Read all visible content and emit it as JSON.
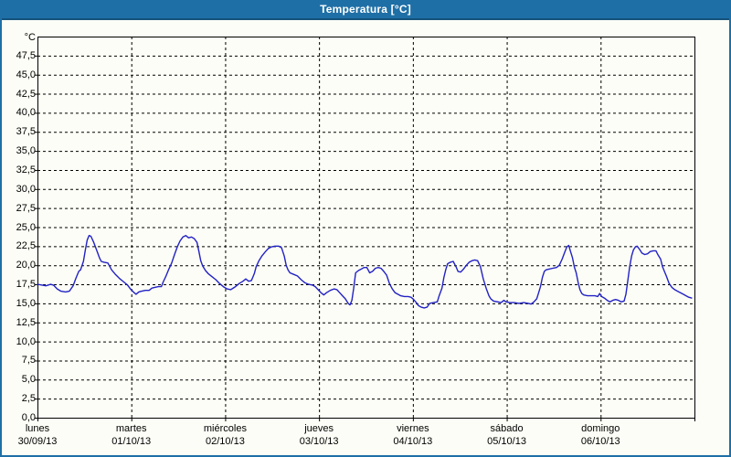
{
  "window": {
    "title": "Temperatura [°C]"
  },
  "colors": {
    "titlebar_bg": "#1e6fa6",
    "window_border": "#1e6fa6",
    "panel_bg": "#fcfdf6",
    "grid": "#000000",
    "axis": "#000000",
    "text": "#000000",
    "line": "#2222c4"
  },
  "chart_data": {
    "type": "line",
    "title": "Temperatura [°C]",
    "y_unit_label": "°C",
    "ylabel": "",
    "xlabel": "",
    "ylim": [
      0,
      50
    ],
    "y_tick_step": 2.5,
    "grid": "dashed",
    "legend": "none",
    "y_tick_values": [
      47.5,
      45.0,
      42.5,
      40.0,
      37.5,
      35.0,
      32.5,
      30.0,
      27.5,
      25.0,
      22.5,
      20.0,
      17.5,
      15.0,
      12.5,
      10.0,
      7.5,
      5.0,
      2.5,
      0.0
    ],
    "y_tick_labels": [
      "47,5",
      "45,0",
      "42,5",
      "40,0",
      "37,5",
      "35,0",
      "32,5",
      "30,0",
      "27,5",
      "25,0",
      "22,5",
      "20,0",
      "17,5",
      "15,0",
      "12,5",
      "10,0",
      "7,5",
      "5,0",
      "2,5",
      "0,0"
    ],
    "x_days": [
      {
        "name": "lunes",
        "date": "30/09/13"
      },
      {
        "name": "martes",
        "date": "01/10/13"
      },
      {
        "name": "miércoles",
        "date": "02/10/13"
      },
      {
        "name": "jueves",
        "date": "03/10/13"
      },
      {
        "name": "viernes",
        "date": "04/10/13"
      },
      {
        "name": "sábado",
        "date": "05/10/13"
      },
      {
        "name": "domingo",
        "date": "06/10/13"
      }
    ],
    "series": [
      {
        "name": "Temperatura",
        "color": "#2222c4",
        "points": [
          [
            0.0,
            17.5
          ],
          [
            0.05,
            17.4
          ],
          [
            0.09,
            17.3
          ],
          [
            0.14,
            17.5
          ],
          [
            0.17,
            17.4
          ],
          [
            0.21,
            16.9
          ],
          [
            0.25,
            16.6
          ],
          [
            0.3,
            16.5
          ],
          [
            0.34,
            16.6
          ],
          [
            0.38,
            17.3
          ],
          [
            0.41,
            18.3
          ],
          [
            0.44,
            19.2
          ],
          [
            0.46,
            19.4
          ],
          [
            0.49,
            20.5
          ],
          [
            0.51,
            22.0
          ],
          [
            0.53,
            23.3
          ],
          [
            0.55,
            23.9
          ],
          [
            0.57,
            23.8
          ],
          [
            0.6,
            23.0
          ],
          [
            0.63,
            22.0
          ],
          [
            0.66,
            21.0
          ],
          [
            0.68,
            20.5
          ],
          [
            0.71,
            20.4
          ],
          [
            0.75,
            20.3
          ],
          [
            0.79,
            19.4
          ],
          [
            0.83,
            18.8
          ],
          [
            0.88,
            18.2
          ],
          [
            0.92,
            17.8
          ],
          [
            0.96,
            17.4
          ],
          [
            0.99,
            16.9
          ],
          [
            1.03,
            16.4
          ],
          [
            1.05,
            16.2
          ],
          [
            1.08,
            16.5
          ],
          [
            1.11,
            16.6
          ],
          [
            1.15,
            16.7
          ],
          [
            1.19,
            16.7
          ],
          [
            1.22,
            17.0
          ],
          [
            1.25,
            17.1
          ],
          [
            1.29,
            17.2
          ],
          [
            1.32,
            17.2
          ],
          [
            1.34,
            17.8
          ],
          [
            1.37,
            18.6
          ],
          [
            1.4,
            19.5
          ],
          [
            1.43,
            20.3
          ],
          [
            1.46,
            21.4
          ],
          [
            1.49,
            22.4
          ],
          [
            1.52,
            23.2
          ],
          [
            1.55,
            23.7
          ],
          [
            1.58,
            23.9
          ],
          [
            1.61,
            23.6
          ],
          [
            1.64,
            23.7
          ],
          [
            1.67,
            23.5
          ],
          [
            1.7,
            23.0
          ],
          [
            1.72,
            21.8
          ],
          [
            1.74,
            20.6
          ],
          [
            1.76,
            19.9
          ],
          [
            1.79,
            19.3
          ],
          [
            1.82,
            18.9
          ],
          [
            1.86,
            18.5
          ],
          [
            1.9,
            18.1
          ],
          [
            1.94,
            17.6
          ],
          [
            1.98,
            17.2
          ],
          [
            2.02,
            16.9
          ],
          [
            2.06,
            16.8
          ],
          [
            2.11,
            17.2
          ],
          [
            2.15,
            17.6
          ],
          [
            2.19,
            17.9
          ],
          [
            2.22,
            18.2
          ],
          [
            2.25,
            17.9
          ],
          [
            2.28,
            18.0
          ],
          [
            2.31,
            18.9
          ],
          [
            2.33,
            19.8
          ],
          [
            2.36,
            20.6
          ],
          [
            2.39,
            21.2
          ],
          [
            2.43,
            21.8
          ],
          [
            2.46,
            22.2
          ],
          [
            2.49,
            22.4
          ],
          [
            2.53,
            22.5
          ],
          [
            2.57,
            22.5
          ],
          [
            2.6,
            22.3
          ],
          [
            2.63,
            21.2
          ],
          [
            2.65,
            20.0
          ],
          [
            2.67,
            19.4
          ],
          [
            2.69,
            19.0
          ],
          [
            2.73,
            18.8
          ],
          [
            2.77,
            18.6
          ],
          [
            2.81,
            18.1
          ],
          [
            2.85,
            17.7
          ],
          [
            2.89,
            17.5
          ],
          [
            2.93,
            17.4
          ],
          [
            2.96,
            17.2
          ],
          [
            2.99,
            16.8
          ],
          [
            3.02,
            16.4
          ],
          [
            3.05,
            16.1
          ],
          [
            3.08,
            16.4
          ],
          [
            3.12,
            16.7
          ],
          [
            3.16,
            16.9
          ],
          [
            3.19,
            16.8
          ],
          [
            3.22,
            16.4
          ],
          [
            3.25,
            16.0
          ],
          [
            3.28,
            15.6
          ],
          [
            3.31,
            15.0
          ],
          [
            3.33,
            14.8
          ],
          [
            3.35,
            15.4
          ],
          [
            3.37,
            17.0
          ],
          [
            3.39,
            19.0
          ],
          [
            3.42,
            19.3
          ],
          [
            3.45,
            19.5
          ],
          [
            3.48,
            19.7
          ],
          [
            3.51,
            19.7
          ],
          [
            3.54,
            19.0
          ],
          [
            3.57,
            19.2
          ],
          [
            3.6,
            19.6
          ],
          [
            3.63,
            19.7
          ],
          [
            3.66,
            19.6
          ],
          [
            3.69,
            19.2
          ],
          [
            3.72,
            18.7
          ],
          [
            3.75,
            17.6
          ],
          [
            3.78,
            16.9
          ],
          [
            3.81,
            16.4
          ],
          [
            3.84,
            16.2
          ],
          [
            3.87,
            16.0
          ],
          [
            3.91,
            15.9
          ],
          [
            3.95,
            15.9
          ],
          [
            3.98,
            15.8
          ],
          [
            4.0,
            15.6
          ],
          [
            4.03,
            15.2
          ],
          [
            4.06,
            14.7
          ],
          [
            4.09,
            14.5
          ],
          [
            4.12,
            14.4
          ],
          [
            4.15,
            14.5
          ],
          [
            4.18,
            15.0
          ],
          [
            4.22,
            15.1
          ],
          [
            4.26,
            15.2
          ],
          [
            4.28,
            16.0
          ],
          [
            4.31,
            17.0
          ],
          [
            4.33,
            18.4
          ],
          [
            4.35,
            19.4
          ],
          [
            4.37,
            20.2
          ],
          [
            4.4,
            20.4
          ],
          [
            4.43,
            20.5
          ],
          [
            4.46,
            19.8
          ],
          [
            4.48,
            19.2
          ],
          [
            4.51,
            19.1
          ],
          [
            4.54,
            19.5
          ],
          [
            4.57,
            20.0
          ],
          [
            4.6,
            20.4
          ],
          [
            4.63,
            20.6
          ],
          [
            4.66,
            20.7
          ],
          [
            4.69,
            20.6
          ],
          [
            4.72,
            19.8
          ],
          [
            4.75,
            18.2
          ],
          [
            4.78,
            17.0
          ],
          [
            4.81,
            16.0
          ],
          [
            4.83,
            15.6
          ],
          [
            4.86,
            15.3
          ],
          [
            4.9,
            15.2
          ],
          [
            4.94,
            15.1
          ],
          [
            4.97,
            15.4
          ],
          [
            4.99,
            15.2
          ],
          [
            5.03,
            15.1
          ],
          [
            5.08,
            15.1
          ],
          [
            5.13,
            15.0
          ],
          [
            5.18,
            15.1
          ],
          [
            5.23,
            15.0
          ],
          [
            5.26,
            14.9
          ],
          [
            5.29,
            15.2
          ],
          [
            5.32,
            15.6
          ],
          [
            5.34,
            16.4
          ],
          [
            5.36,
            17.2
          ],
          [
            5.38,
            18.4
          ],
          [
            5.4,
            19.2
          ],
          [
            5.42,
            19.4
          ],
          [
            5.45,
            19.5
          ],
          [
            5.49,
            19.6
          ],
          [
            5.53,
            19.7
          ],
          [
            5.56,
            20.0
          ],
          [
            5.59,
            20.8
          ],
          [
            5.62,
            21.8
          ],
          [
            5.64,
            22.4
          ],
          [
            5.66,
            22.6
          ],
          [
            5.68,
            21.8
          ],
          [
            5.7,
            21.0
          ],
          [
            5.72,
            19.8
          ],
          [
            5.74,
            19.0
          ],
          [
            5.76,
            17.8
          ],
          [
            5.78,
            16.8
          ],
          [
            5.8,
            16.3
          ],
          [
            5.82,
            16.1
          ],
          [
            5.86,
            16.0
          ],
          [
            5.9,
            16.0
          ],
          [
            5.94,
            16.0
          ],
          [
            5.97,
            15.9
          ],
          [
            5.99,
            16.3
          ],
          [
            6.01,
            15.9
          ],
          [
            6.04,
            15.7
          ],
          [
            6.07,
            15.4
          ],
          [
            6.1,
            15.2
          ],
          [
            6.13,
            15.4
          ],
          [
            6.16,
            15.5
          ],
          [
            6.19,
            15.4
          ],
          [
            6.22,
            15.2
          ],
          [
            6.25,
            15.3
          ],
          [
            6.27,
            16.2
          ],
          [
            6.29,
            18.0
          ],
          [
            6.31,
            19.8
          ],
          [
            6.33,
            21.2
          ],
          [
            6.35,
            22.0
          ],
          [
            6.37,
            22.4
          ],
          [
            6.39,
            22.5
          ],
          [
            6.42,
            22.0
          ],
          [
            6.44,
            21.6
          ],
          [
            6.47,
            21.4
          ],
          [
            6.5,
            21.5
          ],
          [
            6.53,
            21.8
          ],
          [
            6.56,
            21.9
          ],
          [
            6.59,
            21.9
          ],
          [
            6.61,
            21.4
          ],
          [
            6.64,
            20.8
          ],
          [
            6.66,
            19.8
          ],
          [
            6.68,
            19.2
          ],
          [
            6.7,
            18.6
          ],
          [
            6.73,
            17.6
          ],
          [
            6.76,
            17.1
          ],
          [
            6.79,
            16.8
          ],
          [
            6.82,
            16.6
          ],
          [
            6.85,
            16.4
          ],
          [
            6.88,
            16.2
          ],
          [
            6.91,
            16.0
          ],
          [
            6.94,
            15.8
          ],
          [
            6.97,
            15.7
          ]
        ]
      }
    ]
  }
}
